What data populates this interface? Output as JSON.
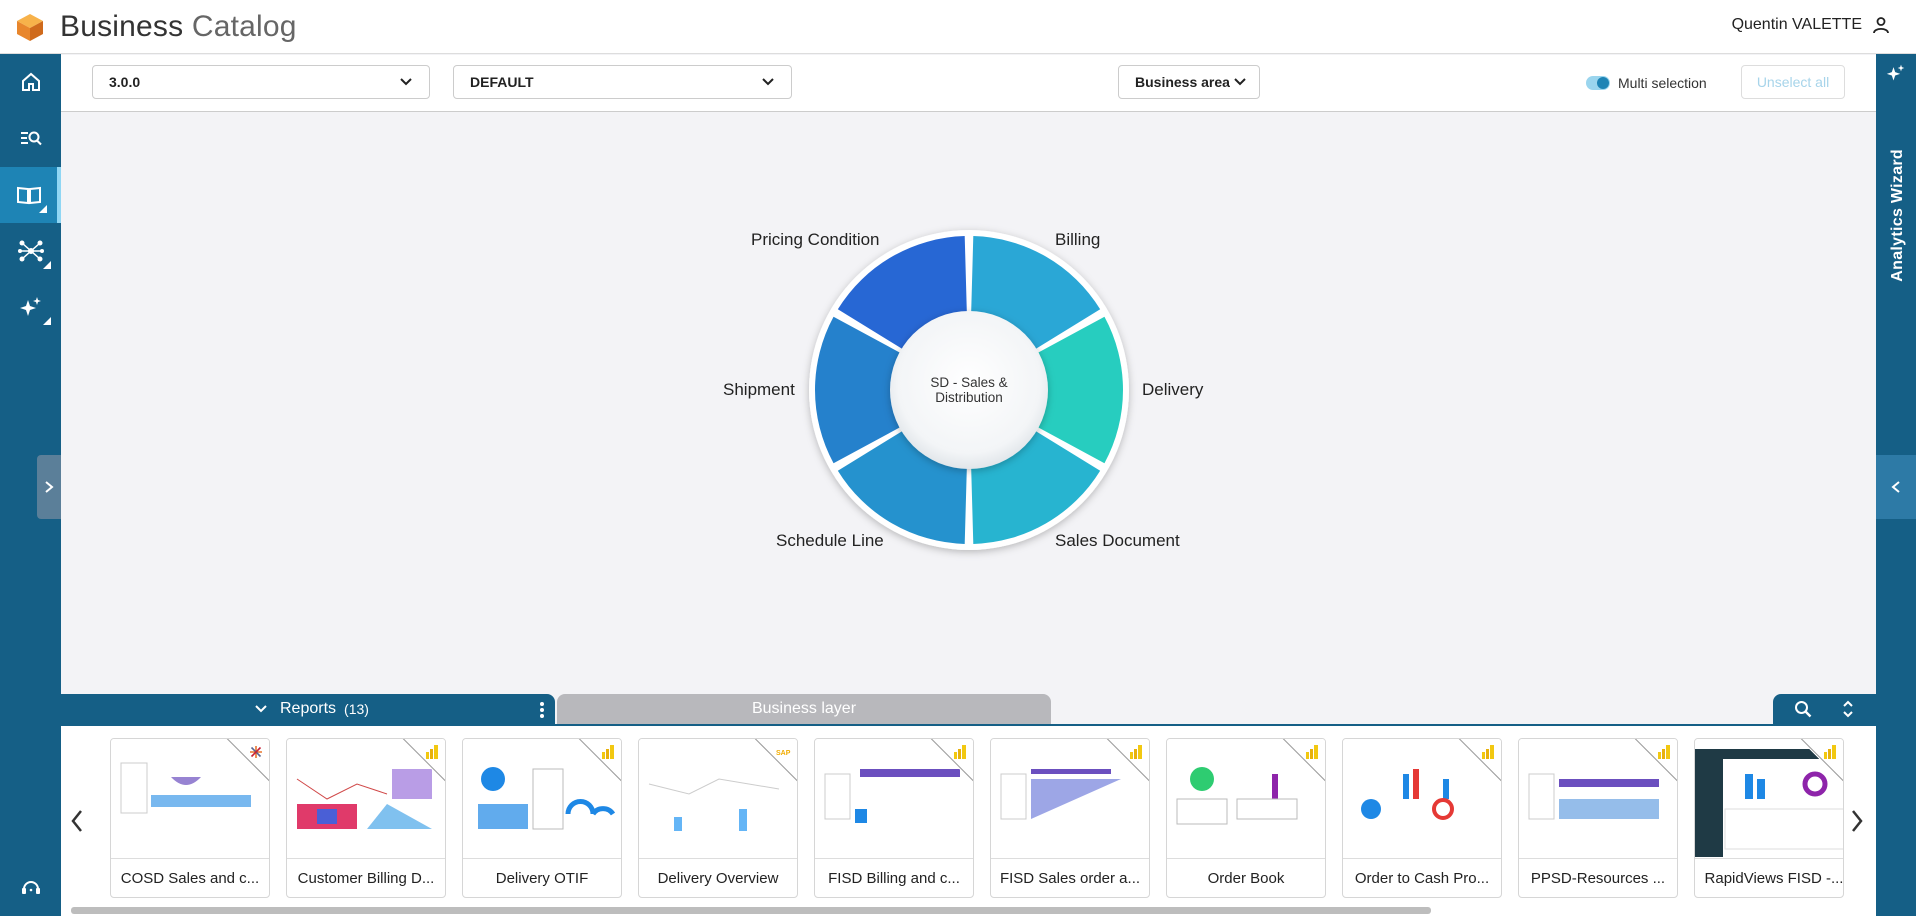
{
  "header": {
    "title_bold": "Business",
    "title_light": "Catalog",
    "user_name": "Quentin VALETTE"
  },
  "nav": {
    "items": [
      {
        "name": "home-icon"
      },
      {
        "name": "search-list-icon"
      },
      {
        "name": "book-icon",
        "active": true
      },
      {
        "name": "network-icon"
      },
      {
        "name": "sparkle-icon"
      }
    ],
    "bottom": {
      "name": "support-icon"
    }
  },
  "right_panel": {
    "label": "Analytics Wizard"
  },
  "toolbar": {
    "version": "3.0.0",
    "variant": "DEFAULT",
    "business_area": "Business area",
    "multi_selection": "Multi selection",
    "multi_selection_on": true,
    "unselect_all": "Unselect all"
  },
  "wheel": {
    "center_label_line1": "SD - Sales &",
    "center_label_line2": "Distribution",
    "segments": [
      {
        "label": "Billing",
        "color": "#2aa7d6"
      },
      {
        "label": "Delivery",
        "color": "#27cdbf"
      },
      {
        "label": "Sales Document",
        "color": "#27b4d0"
      },
      {
        "label": "Schedule Line",
        "color": "#2592ce"
      },
      {
        "label": "Shipment",
        "color": "#2581cc"
      },
      {
        "label": "Pricing Condition",
        "color": "#2767d4"
      }
    ]
  },
  "bottom": {
    "reports_label": "Reports",
    "reports_count": "(13)",
    "business_layer_label": "Business layer"
  },
  "reports": [
    {
      "title": "COSD Sales and c...",
      "badge": "tableau"
    },
    {
      "title": "Customer Billing D...",
      "badge": "powerbi"
    },
    {
      "title": "Delivery OTIF",
      "badge": "powerbi"
    },
    {
      "title": "Delivery Overview",
      "badge": "sap"
    },
    {
      "title": "FISD Billing and c...",
      "badge": "powerbi"
    },
    {
      "title": "FISD Sales order a...",
      "badge": "powerbi"
    },
    {
      "title": "Order Book",
      "badge": "powerbi"
    },
    {
      "title": "Order to Cash Pro...",
      "badge": "powerbi"
    },
    {
      "title": "PPSD-Resources ...",
      "badge": "powerbi"
    },
    {
      "title": "RapidViews FISD -...",
      "badge": "powerbi"
    }
  ],
  "colors": {
    "nav_bg": "#155f86",
    "nav_active": "#1e84b5",
    "accent": "#1e84b5"
  }
}
